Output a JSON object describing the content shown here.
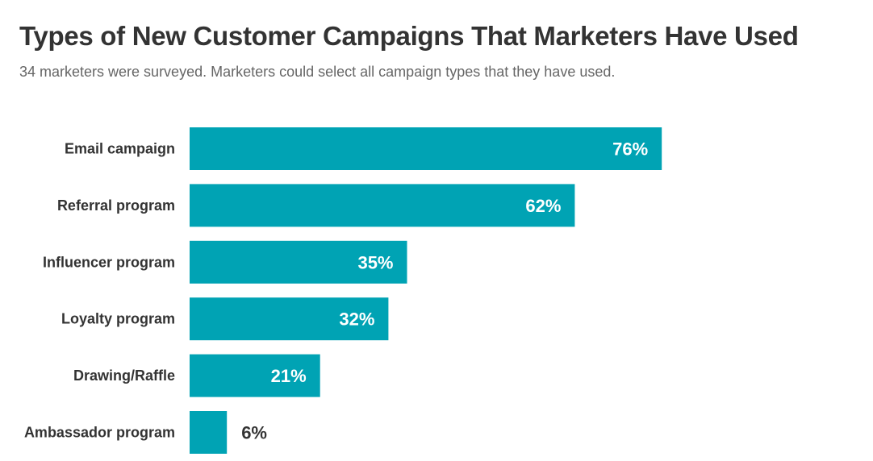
{
  "chart_data": {
    "type": "bar",
    "orientation": "horizontal",
    "title": "Types of New Customer Campaigns That Marketers Have Used",
    "subtitle": "34 marketers were surveyed. Marketers could select all campaign types that they have used.",
    "categories": [
      "Email campaign",
      "Referral program",
      "Influencer program",
      "Loyalty program",
      "Drawing/Raffle",
      "Ambassador program"
    ],
    "values": [
      76,
      62,
      35,
      32,
      21,
      6
    ],
    "labels": [
      "76%",
      "62%",
      "35%",
      "32%",
      "21%",
      "6%"
    ],
    "unit": "%",
    "xlim": [
      0,
      100
    ],
    "grid": false,
    "bar_color": "#00A3B4"
  }
}
